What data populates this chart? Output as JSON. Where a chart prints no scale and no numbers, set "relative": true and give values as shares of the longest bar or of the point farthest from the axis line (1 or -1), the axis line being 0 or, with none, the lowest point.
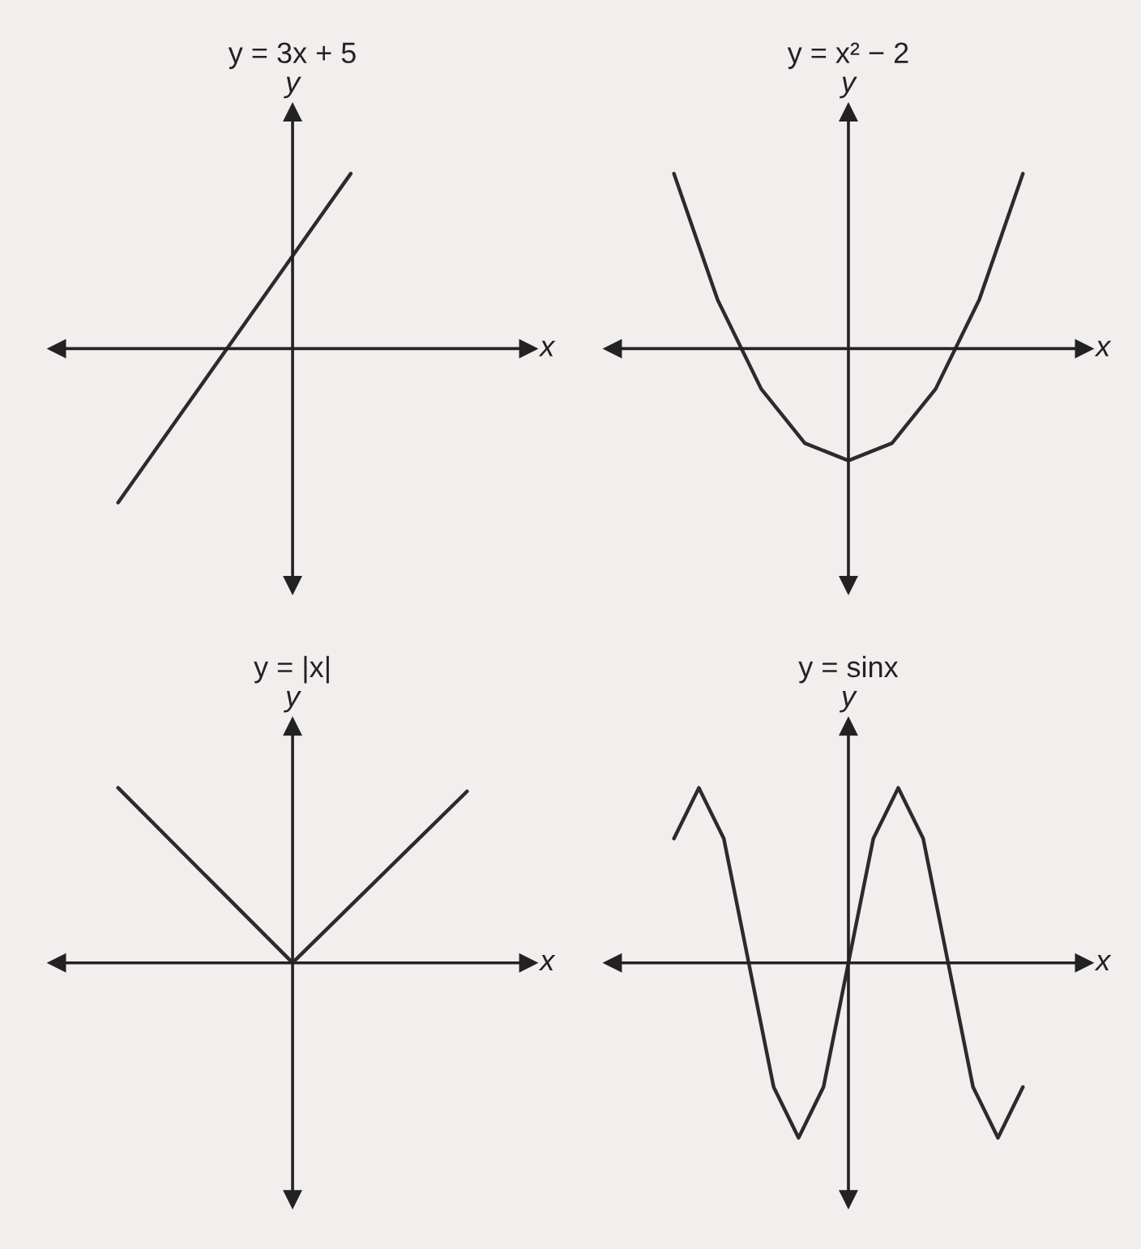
{
  "chart_data": [
    {
      "type": "line",
      "title": "y = 3x + 5",
      "xlabel": "x",
      "ylabel": "y",
      "relative": true,
      "tick_labels": false,
      "color": "#2b2b2b",
      "categories": [
        null,
        null,
        null,
        null,
        null,
        null,
        null
      ],
      "values": [
        -0.88,
        -0.41,
        0.06,
        0.53,
        1,
        null,
        null
      ]
    },
    {
      "type": "line",
      "title": "y = x² − 2",
      "xlabel": "x",
      "ylabel": "y",
      "relative": true,
      "tick_labels": false,
      "color": "#2b2b2b",
      "categories": [
        null,
        null,
        null,
        null,
        null,
        null,
        null,
        null,
        null
      ],
      "values": [
        1,
        0.28,
        -0.23,
        -0.54,
        -0.64,
        -0.54,
        -0.23,
        0.28,
        1
      ]
    },
    {
      "type": "line",
      "title": "y = |x|",
      "xlabel": "x",
      "ylabel": "y",
      "relative": true,
      "tick_labels": false,
      "color": "#2b2b2b",
      "categories": [
        null,
        null,
        null
      ],
      "values": [
        1,
        0,
        0.98
      ]
    },
    {
      "type": "line",
      "title": "y = sinx",
      "xlabel": "x",
      "ylabel": "y",
      "relative": true,
      "tick_labels": false,
      "color": "#2b2b2b",
      "categories": [
        null,
        null,
        null,
        null,
        null,
        null,
        null,
        null,
        null,
        null,
        null,
        null,
        null,
        null,
        null
      ],
      "values": [
        0.71,
        1,
        0.71,
        0,
        -0.71,
        -1,
        -0.71,
        0,
        0.71,
        1,
        0.71,
        0,
        -0.71,
        -1,
        -0.71
      ]
    }
  ]
}
